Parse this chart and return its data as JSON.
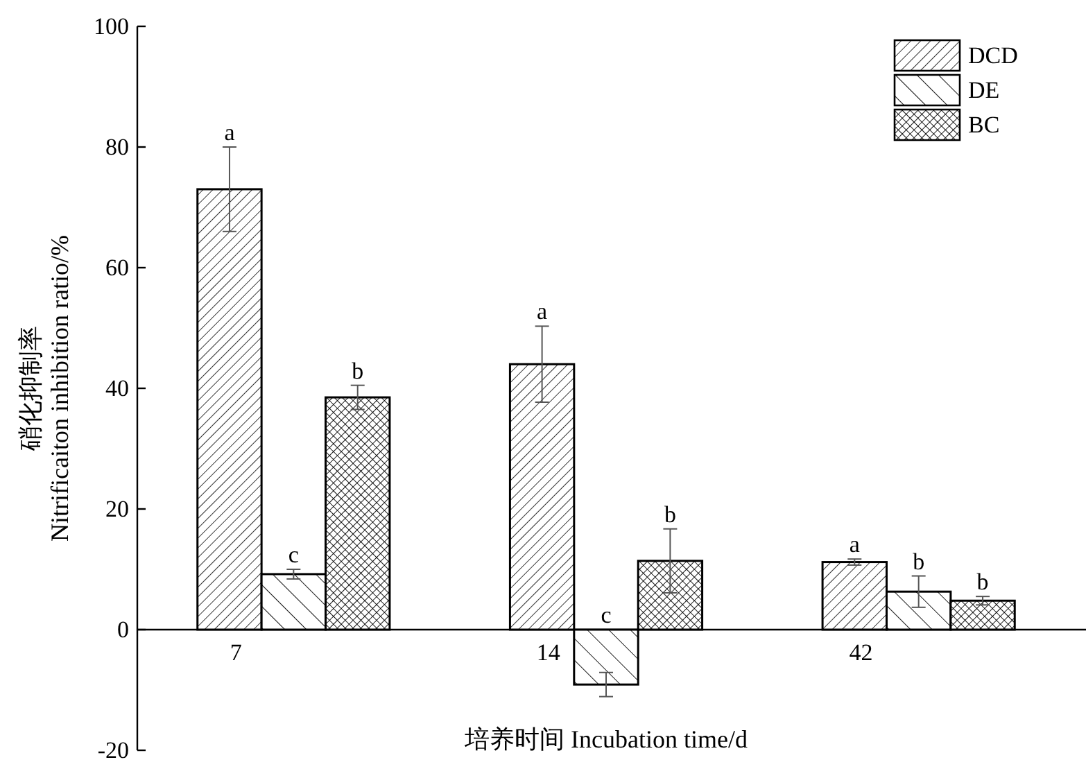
{
  "chart_data": {
    "type": "bar",
    "xlabel": "培养时间 Incubation time/d",
    "ylabel": "硝化抑制率\nNitrificaiton inhibition ratio/%",
    "categories": [
      "7",
      "14",
      "42"
    ],
    "series": [
      {
        "name": "DCD",
        "color": "#000000",
        "values": [
          73,
          44,
          11.2
        ],
        "errors": [
          7,
          6.3,
          0.5
        ]
      },
      {
        "name": "DE",
        "color": "#000000",
        "values": [
          9.2,
          -9.1,
          6.3
        ],
        "errors": [
          0.8,
          2,
          2.6
        ]
      },
      {
        "name": "BC",
        "color": "#000000",
        "values": [
          38.5,
          11.4,
          4.8
        ],
        "errors": [
          2,
          5.3,
          0.7
        ]
      }
    ],
    "annotations": [
      "a",
      "c",
      "b",
      "a",
      "c",
      "b",
      "a",
      "b",
      "b"
    ],
    "ylim": [
      -20,
      100
    ],
    "yticks": [
      -20,
      0,
      20,
      40,
      60,
      80,
      100
    ],
    "legend": "top right",
    "grid": false
  }
}
